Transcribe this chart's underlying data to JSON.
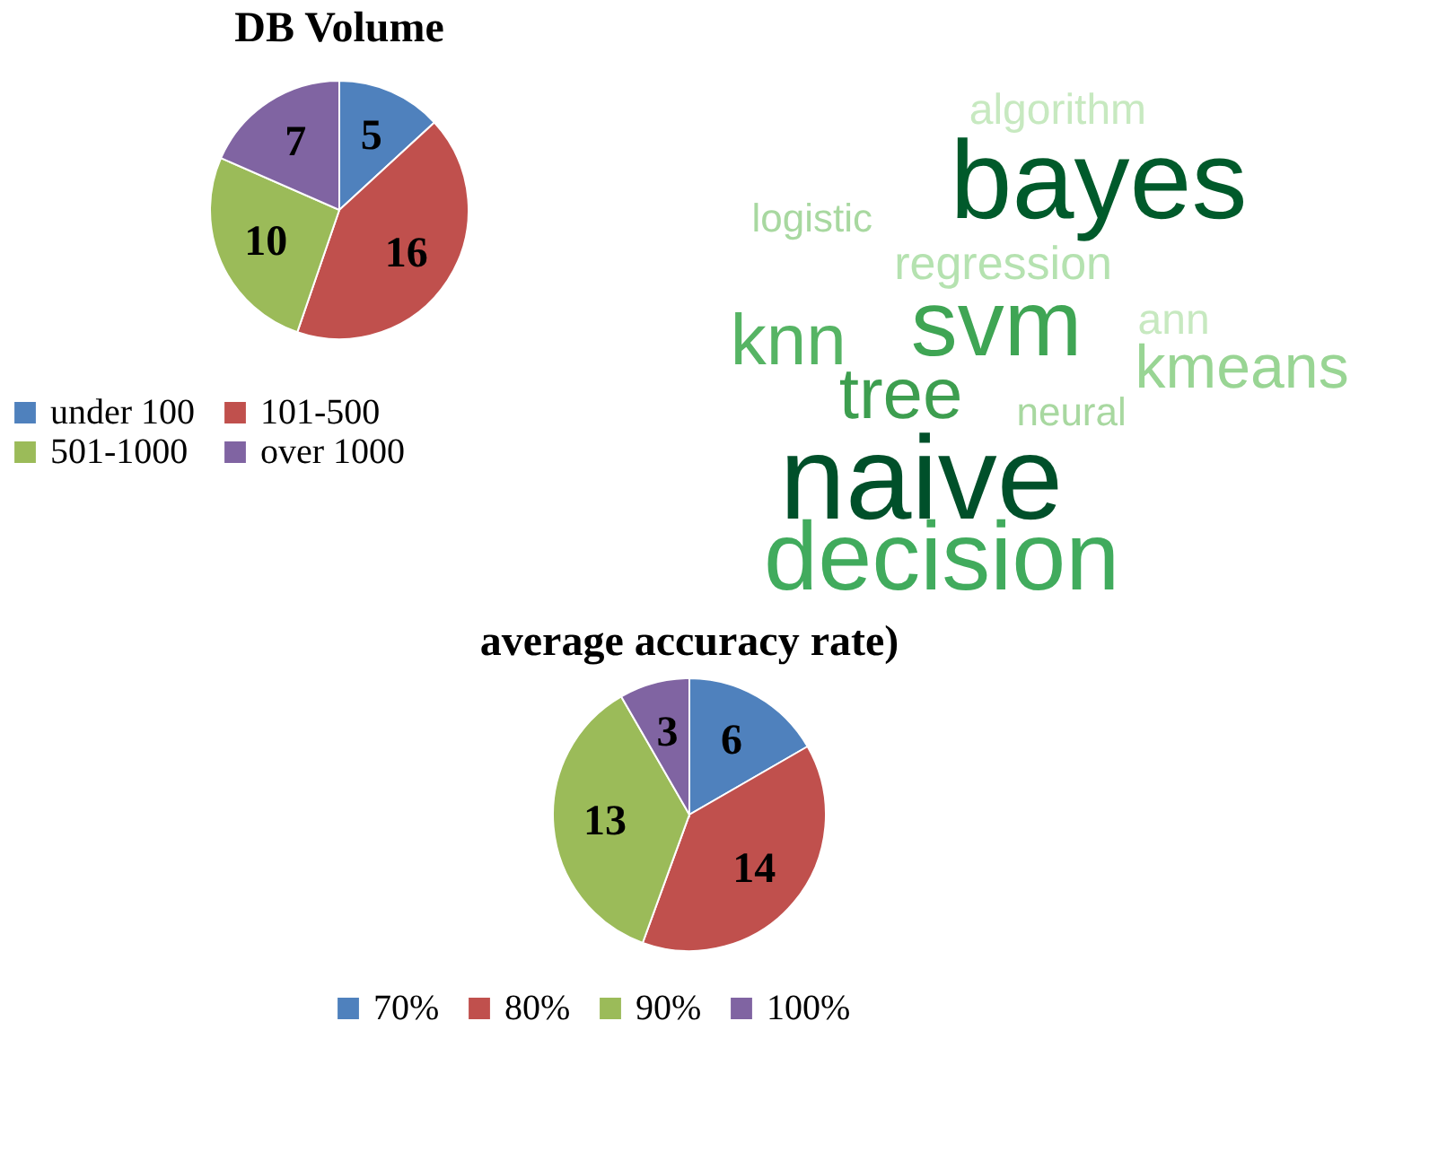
{
  "chart_data": [
    {
      "type": "pie",
      "title": "DB Volume",
      "categories": [
        "under 100",
        "101-500",
        "501-1000",
        "over 1000"
      ],
      "values": [
        5,
        16,
        10,
        7
      ],
      "colors": [
        "#4f81bd",
        "#c0504d",
        "#9bbb59",
        "#8064a2"
      ],
      "data_labels": true,
      "legend": "bottom"
    },
    {
      "type": "other",
      "annotations": [
        "algorithm",
        "bayes",
        "logistic",
        "regression",
        "knn",
        "svm",
        "ann",
        "kmeans",
        "tree",
        "neural",
        "naive",
        "decision"
      ]
    },
    {
      "type": "pie",
      "title": "average accuracy rate)",
      "categories": [
        "70%",
        "80%",
        "90%",
        "100%"
      ],
      "values": [
        6,
        14,
        13,
        3
      ],
      "colors": [
        "#4f81bd",
        "#c0504d",
        "#9bbb59",
        "#8064a2"
      ],
      "data_labels": true,
      "legend": "bottom"
    }
  ]
}
